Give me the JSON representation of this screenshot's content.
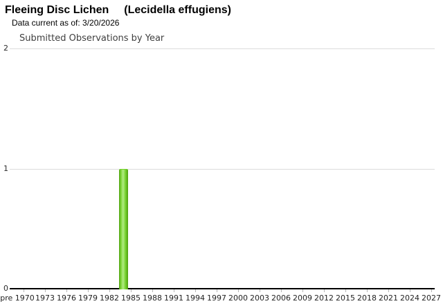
{
  "header": {
    "common_name": "Fleeing Disc Lichen",
    "scientific_name": "(Lecidella effugiens)",
    "data_current_note": "Data current as of: 3/20/2026"
  },
  "chart_data": {
    "type": "bar",
    "title": "Submitted Observations by Year",
    "xlabel": "",
    "ylabel": "",
    "ylim": [
      0,
      2
    ],
    "yticks": [
      0,
      1,
      2
    ],
    "grid": "horizontal",
    "legend": "none",
    "x_tick_labels": [
      "pre 1970",
      "1973",
      "1976",
      "1979",
      "1982",
      "1985",
      "1988",
      "1991",
      "1994",
      "1997",
      "2000",
      "2003",
      "2006",
      "2009",
      "2012",
      "2015",
      "2018",
      "2021",
      "2024",
      "2027"
    ],
    "x_year_start": 1970,
    "x_year_step": 3,
    "points": [
      {
        "year": 1984,
        "count": 1
      }
    ],
    "bar_color_edge": "#4d9f0e",
    "bar_color_main": "#76d02f",
    "bar_color_highlight": "#b2ec83"
  }
}
